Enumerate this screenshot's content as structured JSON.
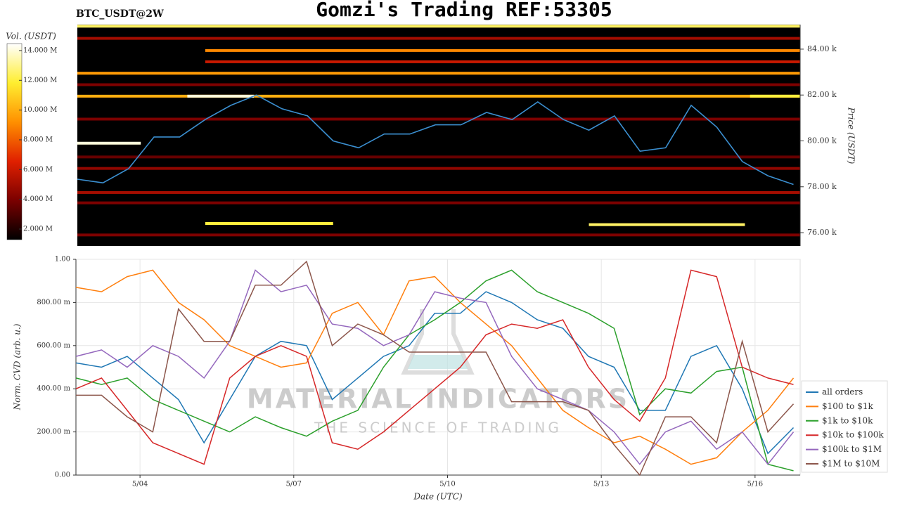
{
  "chart_data": [
    {
      "type": "heatmap",
      "title": "Gomzi's Trading REF:53305",
      "subtitle": "BTC_USDT@2W",
      "ylabel": "Price (USDT)",
      "colorbar_label": "Vol. (USDT)",
      "xlim": [
        2.75,
        16.88
      ],
      "ylim": [
        75420,
        85070
      ],
      "yticks": [
        {
          "value": 76000,
          "label": "76.00 k"
        },
        {
          "value": 78000,
          "label": "78.00 k"
        },
        {
          "value": 80000,
          "label": "80.00 k"
        },
        {
          "value": 82000,
          "label": "82.00 k"
        },
        {
          "value": 84000,
          "label": "84.00 k"
        }
      ],
      "zlim": [
        1290000,
        14470000
      ],
      "zticks": [
        {
          "value": 2000000,
          "label": "2.000 M"
        },
        {
          "value": 4000000,
          "label": "4.000 M"
        },
        {
          "value": 6000000,
          "label": "6.000 M"
        },
        {
          "value": 8000000,
          "label": "8.000 M"
        },
        {
          "value": 10000000,
          "label": "10.000 M"
        },
        {
          "value": 12000000,
          "label": "12.000 M"
        },
        {
          "value": 14000000,
          "label": "14.000 M"
        }
      ],
      "colorscale": [
        "#000000",
        "#7a0000",
        "#e02000",
        "#ff9000",
        "#ffee30",
        "#ffffff"
      ],
      "levels": {
        "price": [
          85000,
          84470,
          83940,
          83450,
          82950,
          82450,
          81950,
          81950,
          81950,
          80950,
          79900,
          79300,
          78800,
          77750,
          77300,
          76400,
          76350,
          75900
        ],
        "x_start": [
          2.75,
          2.75,
          5.25,
          5.25,
          2.75,
          2.75,
          2.75,
          4.9,
          15.9,
          2.75,
          2.75,
          2.75,
          2.75,
          2.75,
          2.75,
          5.25,
          12.75,
          2.75
        ],
        "x_end": [
          16.88,
          16.88,
          16.88,
          16.88,
          16.88,
          16.88,
          16.88,
          6.2,
          16.88,
          16.88,
          3.99,
          16.88,
          16.88,
          16.88,
          16.88,
          7.75,
          15.8,
          16.88
        ],
        "volume": [
          12500000,
          5000000,
          9000000,
          6000000,
          9500000,
          4000000,
          10000000,
          14000000,
          12000000,
          4000000,
          14000000,
          3500000,
          4500000,
          5000000,
          4000000,
          12000000,
          12500000,
          4000000
        ]
      },
      "price_line": {
        "color": "#3b8fd0",
        "x": [
          2.75,
          3.25,
          3.75,
          4.25,
          4.75,
          5.25,
          5.75,
          6.25,
          6.75,
          7.25,
          7.75,
          8.25,
          8.75,
          9.25,
          9.75,
          10.25,
          10.75,
          11.25,
          11.75,
          12.25,
          12.75,
          13.25,
          13.75,
          14.25,
          14.75,
          15.25,
          15.75,
          16.25,
          16.75
        ],
        "values": [
          78330,
          78170,
          78790,
          80170,
          80170,
          80930,
          81550,
          82000,
          81400,
          81090,
          80000,
          79700,
          80300,
          80300,
          80700,
          80700,
          81240,
          80930,
          81700,
          80930,
          80470,
          81090,
          79550,
          79700,
          81550,
          80600,
          79100,
          78480,
          78100
        ]
      }
    },
    {
      "type": "line",
      "xlabel": "Date (UTC)",
      "ylabel": "Norm. CVD (arb. u.)",
      "watermark": [
        "MATERIAL INDICATORS",
        "THE SCIENCE OF TRADING"
      ],
      "xlim": [
        2.75,
        16.88
      ],
      "xticks": [
        {
          "value": 4,
          "label": "5/04"
        },
        {
          "value": 7,
          "label": "5/07"
        },
        {
          "value": 10,
          "label": "5/10"
        },
        {
          "value": 13,
          "label": "5/13"
        },
        {
          "value": 16,
          "label": "5/16"
        }
      ],
      "ylim": [
        0,
        1
      ],
      "yticks": [
        {
          "value": 0,
          "label": "0.00"
        },
        {
          "value": 0.2,
          "label": "200.00 m"
        },
        {
          "value": 0.4,
          "label": "400.00 m"
        },
        {
          "value": 0.6,
          "label": "600.00 m"
        },
        {
          "value": 0.8,
          "label": "800.00 m"
        },
        {
          "value": 1,
          "label": "1.00"
        }
      ],
      "grid": true,
      "legend": "lower right",
      "x": [
        2.75,
        3.25,
        3.75,
        4.25,
        4.75,
        5.25,
        5.75,
        6.25,
        6.75,
        7.25,
        7.75,
        8.25,
        8.75,
        9.25,
        9.75,
        10.25,
        10.75,
        11.25,
        11.75,
        12.25,
        12.75,
        13.25,
        13.75,
        14.25,
        14.75,
        15.25,
        15.75,
        16.25,
        16.75
      ],
      "series": [
        {
          "name": "all orders",
          "color": "#1f77b4",
          "values": [
            0.52,
            0.5,
            0.55,
            0.45,
            0.35,
            0.15,
            0.35,
            0.55,
            0.62,
            0.6,
            0.35,
            0.45,
            0.55,
            0.6,
            0.75,
            0.75,
            0.85,
            0.8,
            0.72,
            0.68,
            0.55,
            0.5,
            0.3,
            0.3,
            0.55,
            0.6,
            0.4,
            0.1,
            0.22
          ]
        },
        {
          "name": "$100 to $1k",
          "color": "#ff7f0e",
          "values": [
            0.87,
            0.85,
            0.92,
            0.95,
            0.8,
            0.72,
            0.6,
            0.55,
            0.5,
            0.52,
            0.75,
            0.8,
            0.65,
            0.9,
            0.92,
            0.8,
            0.7,
            0.6,
            0.45,
            0.3,
            0.22,
            0.15,
            0.18,
            0.12,
            0.05,
            0.08,
            0.2,
            0.3,
            0.45
          ]
        },
        {
          "name": "$1k to $10k",
          "color": "#2ca02c",
          "values": [
            0.45,
            0.42,
            0.45,
            0.35,
            0.3,
            0.25,
            0.2,
            0.27,
            0.22,
            0.18,
            0.25,
            0.3,
            0.5,
            0.65,
            0.72,
            0.8,
            0.9,
            0.95,
            0.85,
            0.8,
            0.75,
            0.68,
            0.28,
            0.4,
            0.38,
            0.48,
            0.5,
            0.05,
            0.02
          ]
        },
        {
          "name": "$10k to $100k",
          "color": "#d62728",
          "values": [
            0.4,
            0.45,
            0.3,
            0.15,
            0.1,
            0.05,
            0.45,
            0.55,
            0.6,
            0.55,
            0.15,
            0.12,
            0.2,
            0.3,
            0.4,
            0.5,
            0.65,
            0.7,
            0.68,
            0.72,
            0.5,
            0.35,
            0.25,
            0.45,
            0.95,
            0.92,
            0.5,
            0.45,
            0.42
          ]
        },
        {
          "name": "$100k to $1M",
          "color": "#9467bd",
          "values": [
            0.55,
            0.58,
            0.5,
            0.6,
            0.55,
            0.45,
            0.62,
            0.95,
            0.85,
            0.88,
            0.7,
            0.68,
            0.6,
            0.65,
            0.85,
            0.82,
            0.8,
            0.55,
            0.4,
            0.35,
            0.3,
            0.2,
            0.05,
            0.2,
            0.25,
            0.12,
            0.2,
            0.05,
            0.2
          ]
        },
        {
          "name": "$1M to $10M",
          "color": "#8c564b",
          "values": [
            0.37,
            0.37,
            0.27,
            0.2,
            0.77,
            0.62,
            0.62,
            0.88,
            0.88,
            0.99,
            0.6,
            0.7,
            0.65,
            0.57,
            0.57,
            0.57,
            0.57,
            0.34,
            0.34,
            0.34,
            0.3,
            0.14,
            0,
            0.27,
            0.27,
            0.15,
            0.62,
            0.2,
            0.33
          ]
        }
      ]
    }
  ]
}
